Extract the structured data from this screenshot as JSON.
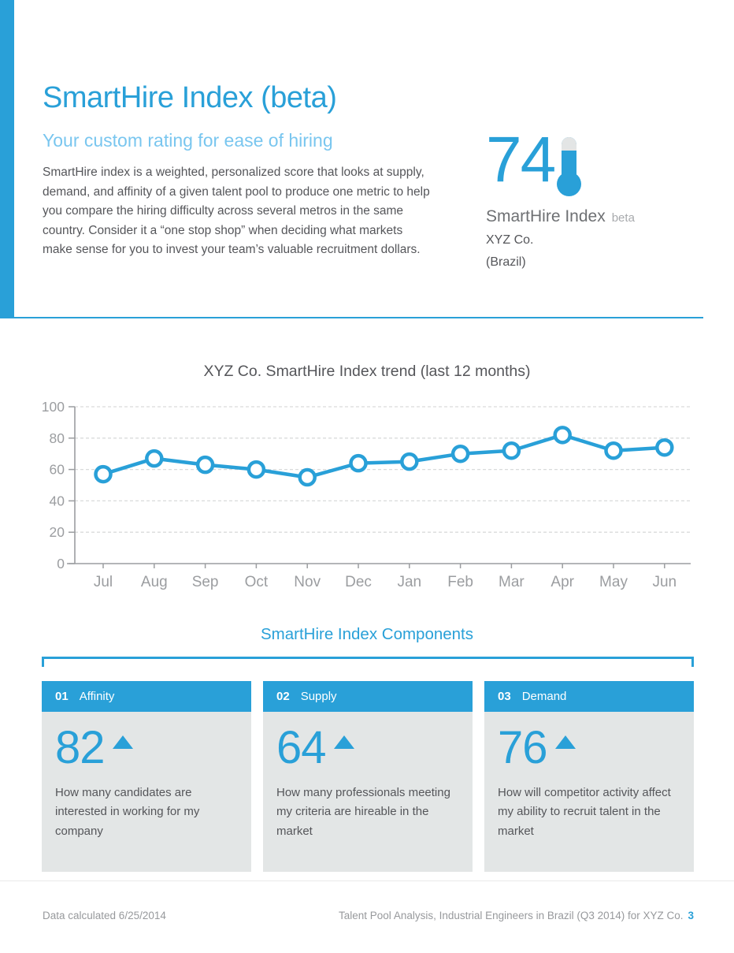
{
  "page": {
    "title": "SmartHire Index (beta)",
    "subtitle": "Your custom rating for ease of hiring",
    "description": "SmartHire index is a weighted, personalized score that looks at supply, demand, and affinity of a given talent pool to produce one metric to help you compare the hiring difficulty across several metros in the same country. Consider it a “one stop shop” when deciding what markets make sense for you to invest your team’s valuable recruitment dollars."
  },
  "score": {
    "value": "74",
    "label": "SmartHire Index",
    "beta_tag": "beta",
    "company": "XYZ Co.",
    "country": "(Brazil)",
    "icon": "thermometer-icon"
  },
  "chart_data": {
    "type": "line",
    "title": "XYZ Co. SmartHire Index trend (last 12 months)",
    "categories": [
      "Jul",
      "Aug",
      "Sep",
      "Oct",
      "Nov",
      "Dec",
      "Jan",
      "Feb",
      "Mar",
      "Apr",
      "May",
      "Jun"
    ],
    "values": [
      57,
      67,
      63,
      60,
      55,
      64,
      65,
      70,
      72,
      82,
      72,
      74
    ],
    "ylim": [
      0,
      100
    ],
    "yticks": [
      0,
      20,
      40,
      60,
      80,
      100
    ],
    "xlabel": "",
    "ylabel": "",
    "grid": "horizontal-dashed",
    "legend": "none",
    "marker": "open-circle",
    "line_color": "#29A0D8",
    "axis_color": "#9B9DA0"
  },
  "components": {
    "heading": "SmartHire Index Components",
    "cards": [
      {
        "number": "01",
        "label": "Affinity",
        "value": "82",
        "trend": "up",
        "description": "How many candidates are interested in working for my company"
      },
      {
        "number": "02",
        "label": "Supply",
        "value": "64",
        "trend": "up",
        "description": "How many professionals meeting my criteria are hireable in the market"
      },
      {
        "number": "03",
        "label": "Demand",
        "value": "76",
        "trend": "up",
        "description": "How will competitor activity affect my ability to recruit talent in the market"
      }
    ]
  },
  "footer": {
    "left": "Data calculated 6/25/2014",
    "right": "Talent Pool Analysis, Industrial Engineers in Brazil (Q3 2014) for XYZ Co.",
    "page_number": "3"
  },
  "colors": {
    "accent": "#29A0D8",
    "accent_light": "#79C6EF",
    "card_body": "#E3E6E6",
    "text_gray": "#55565A",
    "axis_gray": "#9B9DA0"
  }
}
